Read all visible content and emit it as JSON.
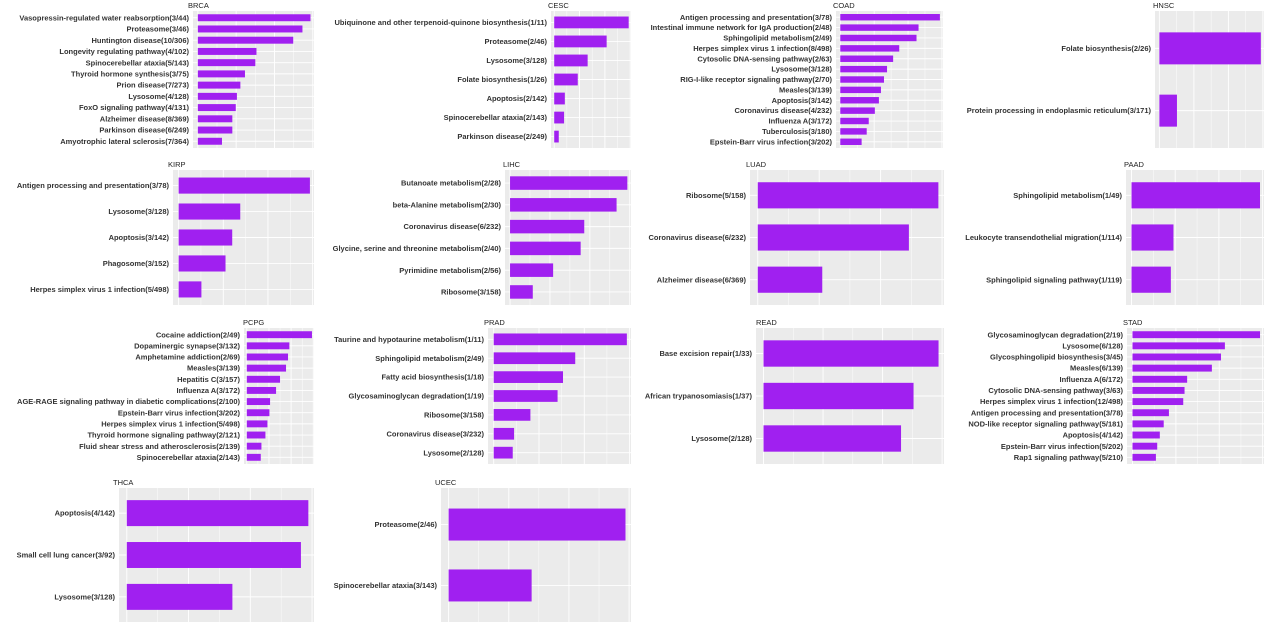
{
  "figure": {
    "accent": "#a020f0",
    "panel_bg": "#ebebeb",
    "grid_color": "#ffffff"
  },
  "chart_data": [
    {
      "type": "bar",
      "orientation": "horizontal",
      "title": "BRCA",
      "xlim": [
        0,
        1
      ],
      "categories": [
        "Vasopressin-regulated water reabsorption(3/44)",
        "Proteasome(3/46)",
        "Huntington disease(10/306)",
        "Longevity regulating pathway(4/102)",
        "Spinocerebellar ataxia(5/143)",
        "Thyroid hormone synthesis(3/75)",
        "Prion disease(7/273)",
        "Lysosome(4/128)",
        "FoxO signaling pathway(4/131)",
        "Alzheimer disease(8/369)",
        "Parkinson disease(6/249)",
        "Amyotrophic lateral sclerosis(7/364)"
      ],
      "values": [
        0.98,
        0.91,
        0.83,
        0.51,
        0.5,
        0.41,
        0.37,
        0.34,
        0.33,
        0.3,
        0.3,
        0.21
      ]
    },
    {
      "type": "bar",
      "orientation": "horizontal",
      "title": "CESC",
      "xlim": [
        0,
        1
      ],
      "categories": [
        "Ubiquinone and other terpenoid-quinone biosynthesis(1/11)",
        "Proteasome(2/46)",
        "Lysosome(3/128)",
        "Folate biosynthesis(1/26)",
        "Apoptosis(2/142)",
        "Spinocerebellar ataxia(2/143)",
        "Parkinson disease(2/249)"
      ],
      "values": [
        0.98,
        0.69,
        0.44,
        0.31,
        0.14,
        0.13,
        0.06
      ]
    },
    {
      "type": "bar",
      "orientation": "horizontal",
      "title": "COAD",
      "xlim": [
        0,
        1
      ],
      "categories": [
        "Antigen processing and presentation(3/78)",
        "Intestinal immune network for IgA production(2/48)",
        "Sphingolipid metabolism(2/49)",
        "Herpes simplex virus 1 infection(8/498)",
        "Cytosolic DNA-sensing pathway(2/63)",
        "Lysosome(3/128)",
        "RIG-I-like receptor signaling pathway(2/70)",
        "Measles(3/139)",
        "Apoptosis(3/142)",
        "Coronavirus disease(4/232)",
        "Influenza A(3/172)",
        "Tuberculosis(3/180)",
        "Epstein-Barr virus infection(3/202)"
      ],
      "values": [
        0.98,
        0.77,
        0.75,
        0.58,
        0.52,
        0.46,
        0.43,
        0.4,
        0.38,
        0.34,
        0.28,
        0.26,
        0.21
      ]
    },
    {
      "type": "bar",
      "orientation": "horizontal",
      "title": "HNSC",
      "xlim": [
        0,
        1
      ],
      "categories": [
        "Folate biosynthesis(2/26)",
        "Protein processing in endoplasmic reticulum(3/171)"
      ],
      "values": [
        0.98,
        0.17
      ]
    },
    {
      "type": "bar",
      "orientation": "horizontal",
      "title": "KIRP",
      "xlim": [
        0,
        1
      ],
      "categories": [
        "Antigen processing and presentation(3/78)",
        "Lysosome(3/128)",
        "Apoptosis(3/142)",
        "Phagosome(3/152)",
        "Herpes simplex virus 1 infection(5/498)"
      ],
      "values": [
        0.98,
        0.46,
        0.4,
        0.35,
        0.17
      ]
    },
    {
      "type": "bar",
      "orientation": "horizontal",
      "title": "LIHC",
      "xlim": [
        0,
        1
      ],
      "categories": [
        "Butanoate metabolism(2/28)",
        "beta-Alanine metabolism(2/30)",
        "Coronavirus disease(6/232)",
        "Glycine, serine and threonine metabolism(2/40)",
        "Pyrimidine metabolism(2/56)",
        "Ribosome(3/158)"
      ],
      "values": [
        0.98,
        0.89,
        0.62,
        0.59,
        0.36,
        0.19
      ]
    },
    {
      "type": "bar",
      "orientation": "horizontal",
      "title": "LUAD",
      "xlim": [
        0,
        1
      ],
      "categories": [
        "Ribosome(5/158)",
        "Coronavirus disease(6/232)",
        "Alzheimer disease(6/369)"
      ],
      "values": [
        0.98,
        0.82,
        0.35
      ]
    },
    {
      "type": "bar",
      "orientation": "horizontal",
      "title": "PAAD",
      "xlim": [
        0,
        1
      ],
      "categories": [
        "Sphingolipid metabolism(1/49)",
        "Leukocyte transendothelial migration(1/114)",
        "Sphingolipid signaling pathway(1/119)"
      ],
      "values": [
        0.98,
        0.32,
        0.3
      ]
    },
    {
      "type": "bar",
      "orientation": "horizontal",
      "title": "PCPG",
      "xlim": [
        0,
        1
      ],
      "categories": [
        "Cocaine addiction(2/49)",
        "Dopaminergic synapse(3/132)",
        "Amphetamine addiction(2/69)",
        "Measles(3/139)",
        "Hepatitis C(3/157)",
        "Influenza A(3/172)",
        "AGE-RAGE signaling pathway in diabetic complications(2/100)",
        "Epstein-Barr virus infection(3/202)",
        "Herpes simplex virus 1 infection(5/498)",
        "Thyroid hormone signaling pathway(2/121)",
        "Fluid shear stress and atherosclerosis(2/139)",
        "Spinocerebellar ataxia(2/143)"
      ],
      "values": [
        0.98,
        0.64,
        0.62,
        0.59,
        0.5,
        0.44,
        0.35,
        0.34,
        0.31,
        0.28,
        0.22,
        0.21
      ]
    },
    {
      "type": "bar",
      "orientation": "horizontal",
      "title": "PRAD",
      "xlim": [
        0,
        1
      ],
      "categories": [
        "Taurine and hypotaurine metabolism(1/11)",
        "Sphingolipid metabolism(2/49)",
        "Fatty acid biosynthesis(1/18)",
        "Glycosaminoglycan degradation(1/19)",
        "Ribosome(3/158)",
        "Coronavirus disease(3/232)",
        "Lysosome(2/128)"
      ],
      "values": [
        0.98,
        0.6,
        0.51,
        0.47,
        0.27,
        0.15,
        0.14
      ]
    },
    {
      "type": "bar",
      "orientation": "horizontal",
      "title": "READ",
      "xlim": [
        0,
        1
      ],
      "categories": [
        "Base excision repair(1/33)",
        "African trypanosomiasis(1/37)",
        "Lysosome(2/128)"
      ],
      "values": [
        0.98,
        0.84,
        0.77
      ]
    },
    {
      "type": "bar",
      "orientation": "horizontal",
      "title": "STAD",
      "xlim": [
        0,
        1
      ],
      "categories": [
        "Glycosaminoglycan degradation(2/19)",
        "Lysosome(6/128)",
        "Glycosphingolipid biosynthesis(3/45)",
        "Measles(6/139)",
        "Influenza A(6/172)",
        "Cytosolic DNA-sensing pathway(3/63)",
        "Herpes simplex virus 1 infection(12/498)",
        "Antigen processing and presentation(3/78)",
        "NOD-like receptor signaling pathway(5/181)",
        "Apoptosis(4/142)",
        "Epstein-Barr virus infection(5/202)",
        "Rap1 signaling pathway(5/210)"
      ],
      "values": [
        0.98,
        0.71,
        0.68,
        0.61,
        0.42,
        0.4,
        0.39,
        0.28,
        0.24,
        0.21,
        0.19,
        0.18
      ]
    },
    {
      "type": "bar",
      "orientation": "horizontal",
      "title": "THCA",
      "xlim": [
        0,
        1
      ],
      "categories": [
        "Apoptosis(4/142)",
        "Small cell lung cancer(3/92)",
        "Lysosome(3/128)"
      ],
      "values": [
        0.98,
        0.94,
        0.57
      ]
    },
    {
      "type": "bar",
      "orientation": "horizontal",
      "title": "UCEC",
      "xlim": [
        0,
        1
      ],
      "categories": [
        "Proteasome(2/46)",
        "Spinocerebellar ataxia(3/143)"
      ],
      "values": [
        0.98,
        0.46
      ]
    }
  ]
}
